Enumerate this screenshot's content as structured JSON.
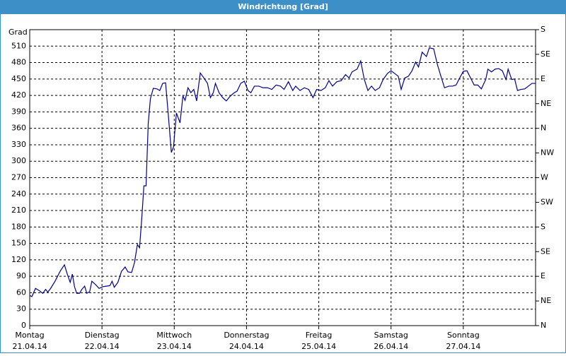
{
  "chart_data": {
    "type": "line",
    "title": "Windrichtung [Grad]",
    "y_label": "Grad",
    "color": "#00008c",
    "grid": true,
    "xlim": [
      0,
      7
    ],
    "xticks": [
      {
        "value": 0,
        "label": "Montag"
      },
      {
        "value": 1,
        "label": "Dienstag"
      },
      {
        "value": 2,
        "label": "Mittwoch"
      },
      {
        "value": 3,
        "label": "Donnerstag"
      },
      {
        "value": 4,
        "label": "Freitag"
      },
      {
        "value": 5,
        "label": "Samstag"
      },
      {
        "value": 6,
        "label": "Sonntag"
      }
    ],
    "xtick_dates": [
      "21.04.14",
      "22.04.14",
      "23.04.14",
      "24.04.14",
      "25.04.14",
      "26.04.14",
      "27.04.14"
    ],
    "ylim": [
      0,
      540
    ],
    "yticks": [
      0,
      30,
      60,
      90,
      120,
      150,
      180,
      210,
      240,
      270,
      300,
      330,
      360,
      390,
      420,
      450,
      480,
      510
    ],
    "y2lim": [
      0,
      540
    ],
    "y2ticks": [
      {
        "value": 0,
        "label": "N"
      },
      {
        "value": 45,
        "label": "NE"
      },
      {
        "value": 90,
        "label": "E"
      },
      {
        "value": 135,
        "label": "SE"
      },
      {
        "value": 180,
        "label": "S"
      },
      {
        "value": 225,
        "label": "SW"
      },
      {
        "value": 270,
        "label": "W"
      },
      {
        "value": 315,
        "label": "NW"
      },
      {
        "value": 360,
        "label": "N"
      },
      {
        "value": 405,
        "label": "NE"
      },
      {
        "value": 450,
        "label": "E"
      },
      {
        "value": 495,
        "label": "SE"
      },
      {
        "value": 540,
        "label": "S"
      }
    ],
    "x": [
      0,
      0.03,
      0.08,
      0.13,
      0.18,
      0.22,
      0.25,
      0.29,
      0.35,
      0.42,
      0.48,
      0.52,
      0.56,
      0.59,
      0.62,
      0.65,
      0.69,
      0.72,
      0.76,
      0.79,
      0.83,
      0.86,
      0.91,
      0.96,
      1.01,
      1.06,
      1.11,
      1.14,
      1.17,
      1.22,
      1.27,
      1.32,
      1.36,
      1.41,
      1.45,
      1.49,
      1.52,
      1.55,
      1.58,
      1.61,
      1.64,
      1.67,
      1.71,
      1.76,
      1.8,
      1.84,
      1.88,
      1.92,
      1.96,
      1.99,
      2.03,
      2.08,
      2.12,
      2.15,
      2.19,
      2.23,
      2.27,
      2.31,
      2.36,
      2.41,
      2.46,
      2.5,
      2.54,
      2.57,
      2.62,
      2.67,
      2.72,
      2.77,
      2.82,
      2.87,
      2.92,
      2.97,
      3.02,
      3.06,
      3.11,
      3.17,
      3.23,
      3.29,
      3.35,
      3.41,
      3.47,
      3.52,
      3.58,
      3.64,
      3.68,
      3.74,
      3.8,
      3.86,
      3.92,
      3.97,
      4.03,
      4.09,
      4.14,
      4.19,
      4.25,
      4.31,
      4.37,
      4.42,
      4.46,
      4.53,
      4.58,
      4.63,
      4.68,
      4.73,
      4.78,
      4.84,
      4.89,
      4.95,
      5.0,
      5.05,
      5.1,
      5.14,
      5.19,
      5.24,
      5.29,
      5.34,
      5.38,
      5.43,
      5.49,
      5.53,
      5.59,
      5.64,
      5.69,
      5.74,
      5.8,
      5.85,
      5.9,
      5.95,
      6.0,
      6.05,
      6.1,
      6.15,
      6.2,
      6.25,
      6.31,
      6.34,
      6.39,
      6.44,
      6.49,
      6.54,
      6.59,
      6.62,
      6.67,
      6.71,
      6.75,
      6.8,
      6.85,
      6.9,
      6.95,
      7.0
    ],
    "values": [
      55,
      53,
      68,
      64,
      59,
      66,
      61,
      68,
      81,
      99,
      111,
      94,
      79,
      94,
      71,
      59,
      59,
      66,
      72,
      59,
      62,
      81,
      75,
      68,
      71,
      72,
      73,
      81,
      70,
      79,
      99,
      107,
      98,
      97,
      115,
      148,
      142,
      195,
      255,
      255,
      369,
      414,
      433,
      432,
      429,
      442,
      443,
      381,
      316,
      326,
      388,
      370,
      419,
      411,
      434,
      425,
      431,
      410,
      461,
      452,
      442,
      416,
      425,
      442,
      425,
      416,
      410,
      418,
      424,
      428,
      442,
      446,
      429,
      425,
      437,
      437,
      434,
      434,
      431,
      439,
      437,
      431,
      445,
      429,
      437,
      429,
      434,
      431,
      416,
      431,
      429,
      434,
      447,
      437,
      445,
      447,
      458,
      452,
      463,
      468,
      483,
      449,
      429,
      437,
      429,
      434,
      449,
      460,
      465,
      460,
      455,
      431,
      452,
      455,
      465,
      481,
      472,
      499,
      491,
      507,
      505,
      477,
      455,
      434,
      437,
      437,
      439,
      452,
      464,
      465,
      452,
      439,
      439,
      432,
      449,
      468,
      463,
      468,
      469,
      465,
      449,
      468,
      449,
      450,
      429,
      431,
      432,
      437,
      442,
      442
    ]
  }
}
